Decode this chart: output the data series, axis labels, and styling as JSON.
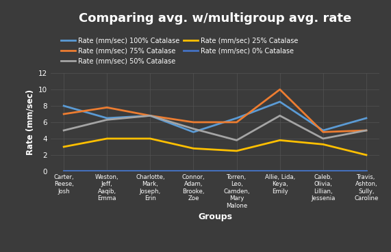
{
  "title": "Comparing avg. w/multigroup avg. rate",
  "xlabel": "Groups",
  "ylabel": "Rate (mm/sec)",
  "background_color": "#3b3b3b",
  "plot_bg_color": "#3b3b3b",
  "grid_color": "#555555",
  "text_color": "#ffffff",
  "ylim": [
    0,
    12
  ],
  "yticks": [
    0,
    2,
    4,
    6,
    8,
    10,
    12
  ],
  "x_labels": [
    "Carter,\nReese,\nJosh",
    "Weston,\nJeff,\nAaqib,\nEmma",
    "Charlotte,\nMark,\nJoseph,\nErin",
    "Connor,\nAdam,\nBrooke,\nZoe",
    "Torren,\nLeo,\nCamden,\nMary\nMalone",
    "Allie, Lida,\nKeya,\nEmily",
    "Caleb,\nOlivia,\nLillian,\nJessenia",
    "Travis,\nAshton,\nSully,\nCaroline"
  ],
  "series": [
    {
      "label": "Rate (mm/sec) 100% Catalase",
      "color": "#5b9bd5",
      "linewidth": 2.0,
      "values": [
        8.0,
        6.5,
        6.8,
        4.8,
        6.5,
        8.5,
        5.0,
        6.5
      ]
    },
    {
      "label": "Rate (mm/sec) 75% Catalase",
      "color": "#ed7d31",
      "linewidth": 2.0,
      "values": [
        7.0,
        7.8,
        6.8,
        6.0,
        6.0,
        10.0,
        4.8,
        5.0
      ]
    },
    {
      "label": "Rate (mm/sec) 50% Catalase",
      "color": "#a5a5a5",
      "linewidth": 2.0,
      "values": [
        5.0,
        6.3,
        6.8,
        5.2,
        3.8,
        6.8,
        4.0,
        5.0
      ]
    },
    {
      "label": "Rate (mm/sec) 25% Catalase",
      "color": "#ffc000",
      "linewidth": 2.0,
      "values": [
        3.0,
        4.0,
        4.0,
        2.8,
        2.5,
        3.8,
        3.3,
        2.0
      ]
    },
    {
      "label": "Rate (mm/sec) 0% Catalase",
      "color": "#4472c4",
      "linewidth": 2.0,
      "values": [
        0.1,
        0.1,
        0.1,
        0.1,
        0.1,
        0.1,
        0.1,
        0.1
      ]
    }
  ],
  "legend_order": [
    0,
    1,
    2,
    3,
    4
  ]
}
